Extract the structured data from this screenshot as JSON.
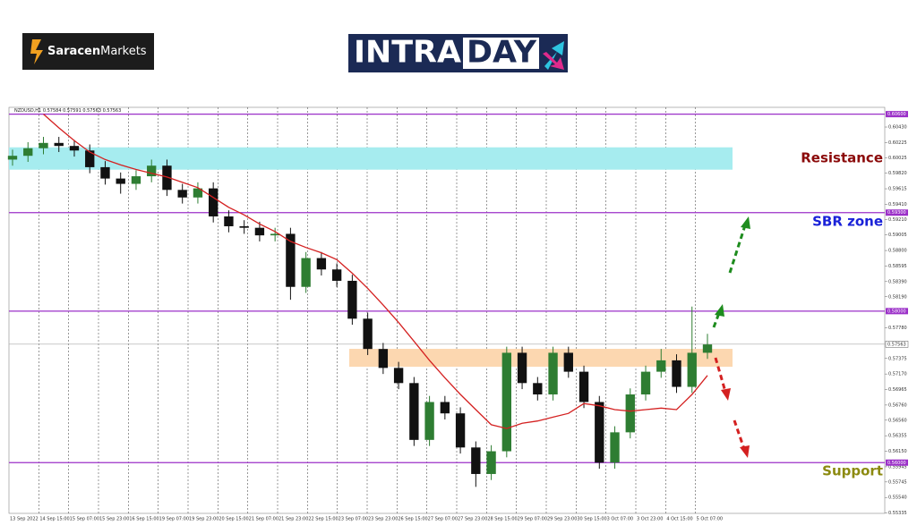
{
  "header": {
    "brand": [
      "Saracen",
      "Markets"
    ],
    "banner": [
      "INTRA",
      "DAY"
    ]
  },
  "chart_data": {
    "type": "candlestick",
    "title": "NZDUSD,H1 0.57584 0.57591 0.57563 0.57563",
    "ylim": [
      0.5533,
      0.6069
    ],
    "yticks": [
      {
        "value": 0.6043,
        "label": "0.60430"
      },
      {
        "value": 0.60225,
        "label": "0.60225"
      },
      {
        "value": 0.60025,
        "label": "0.60025"
      },
      {
        "value": 0.5982,
        "label": "0.59820"
      },
      {
        "value": 0.59615,
        "label": "0.59615"
      },
      {
        "value": 0.5941,
        "label": "0.59410"
      },
      {
        "value": 0.5921,
        "label": "0.59210"
      },
      {
        "value": 0.59005,
        "label": "0.59005"
      },
      {
        "value": 0.588,
        "label": "0.58800"
      },
      {
        "value": 0.58595,
        "label": "0.58595"
      },
      {
        "value": 0.5839,
        "label": "0.58390"
      },
      {
        "value": 0.5819,
        "label": "0.58190"
      },
      {
        "value": 0.5778,
        "label": "0.57780"
      },
      {
        "value": 0.57375,
        "label": "0.57375"
      },
      {
        "value": 0.5717,
        "label": "0.57170"
      },
      {
        "value": 0.56965,
        "label": "0.56965"
      },
      {
        "value": 0.5676,
        "label": "0.56760"
      },
      {
        "value": 0.5656,
        "label": "0.56560"
      },
      {
        "value": 0.56355,
        "label": "0.56355"
      },
      {
        "value": 0.5615,
        "label": "0.56150"
      },
      {
        "value": 0.55945,
        "label": "0.55945"
      },
      {
        "value": 0.55745,
        "label": "0.55745"
      },
      {
        "value": 0.5554,
        "label": "0.55540"
      },
      {
        "value": 0.55335,
        "label": "0.55335"
      }
    ],
    "x_labels": [
      "13 Sep 2022",
      "14 Sep 15:00",
      "15 Sep 07:00",
      "15 Sep 23:00",
      "16 Sep 15:00",
      "19 Sep 07:00",
      "19 Sep 23:00",
      "20 Sep 15:00",
      "21 Sep 07:00",
      "21 Sep 23:00",
      "22 Sep 15:00",
      "23 Sep 07:00",
      "23 Sep 23:00",
      "26 Sep 15:00",
      "27 Sep 07:00",
      "27 Sep 23:00",
      "28 Sep 15:00",
      "29 Sep 07:00",
      "29 Sep 23:00",
      "30 Sep 15:00",
      "3 Oct 07:00",
      "3 Oct 23:00",
      "4 Oct 15:00",
      "5 Oct 07:00"
    ],
    "up_color": "#2e7d32",
    "down_color": "#111111",
    "candles": [
      [
        0.6,
        0.6013,
        0.5992,
        0.6005
      ],
      [
        0.6005,
        0.6023,
        0.5997,
        0.6015
      ],
      [
        0.6015,
        0.603,
        0.6007,
        0.6022
      ],
      [
        0.6022,
        0.603,
        0.601,
        0.6018
      ],
      [
        0.6018,
        0.6026,
        0.6004,
        0.6012
      ],
      [
        0.6012,
        0.602,
        0.5982,
        0.599
      ],
      [
        0.599,
        0.5998,
        0.5967,
        0.5975
      ],
      [
        0.5975,
        0.5983,
        0.5955,
        0.5968
      ],
      [
        0.5968,
        0.5986,
        0.596,
        0.5978
      ],
      [
        0.5978,
        0.6,
        0.597,
        0.5992
      ],
      [
        0.5992,
        0.6,
        0.5952,
        0.596
      ],
      [
        0.596,
        0.5968,
        0.5942,
        0.595
      ],
      [
        0.595,
        0.597,
        0.5942,
        0.5962
      ],
      [
        0.5962,
        0.597,
        0.5917,
        0.5925
      ],
      [
        0.5925,
        0.5933,
        0.5904,
        0.5912
      ],
      [
        0.5912,
        0.592,
        0.5902,
        0.591
      ],
      [
        0.591,
        0.5918,
        0.5892,
        0.59
      ],
      [
        0.59,
        0.591,
        0.5892,
        0.5902
      ],
      [
        0.5902,
        0.591,
        0.5815,
        0.5832
      ],
      [
        0.5832,
        0.5878,
        0.5824,
        0.587
      ],
      [
        0.587,
        0.5878,
        0.5847,
        0.5855
      ],
      [
        0.5855,
        0.5863,
        0.5832,
        0.584
      ],
      [
        0.584,
        0.5848,
        0.5782,
        0.579
      ],
      [
        0.579,
        0.5798,
        0.5742,
        0.575
      ],
      [
        0.575,
        0.5758,
        0.5717,
        0.5725
      ],
      [
        0.5725,
        0.5733,
        0.5697,
        0.5705
      ],
      [
        0.5705,
        0.5713,
        0.5622,
        0.563
      ],
      [
        0.563,
        0.5688,
        0.5622,
        0.568
      ],
      [
        0.568,
        0.5688,
        0.5657,
        0.5665
      ],
      [
        0.5665,
        0.5673,
        0.5612,
        0.562
      ],
      [
        0.562,
        0.5628,
        0.5568,
        0.5585
      ],
      [
        0.5585,
        0.5623,
        0.5577,
        0.5615
      ],
      [
        0.5615,
        0.5753,
        0.5607,
        0.5745
      ],
      [
        0.5745,
        0.5753,
        0.5697,
        0.5705
      ],
      [
        0.5705,
        0.5713,
        0.5682,
        0.569
      ],
      [
        0.569,
        0.5753,
        0.5682,
        0.5745
      ],
      [
        0.5745,
        0.5753,
        0.5712,
        0.572
      ],
      [
        0.572,
        0.5728,
        0.5672,
        0.568
      ],
      [
        0.568,
        0.5688,
        0.5592,
        0.56
      ],
      [
        0.56,
        0.5648,
        0.5592,
        0.564
      ],
      [
        0.564,
        0.5698,
        0.5632,
        0.569
      ],
      [
        0.569,
        0.5728,
        0.5682,
        0.572
      ],
      [
        0.572,
        0.575,
        0.5712,
        0.5735
      ],
      [
        0.5735,
        0.5743,
        0.5692,
        0.57
      ],
      [
        0.57,
        0.5806,
        0.5692,
        0.5745
      ],
      [
        0.5745,
        0.577,
        0.5737,
        0.5756
      ]
    ],
    "ma": {
      "color": "#d42020",
      "values": [
        null,
        null,
        0.606,
        0.6042,
        0.6025,
        0.601,
        0.6,
        0.5993,
        0.5987,
        0.5982,
        0.5977,
        0.597,
        0.5963,
        0.595,
        0.5937,
        0.5927,
        0.5915,
        0.5905,
        0.5892,
        0.5884,
        0.5877,
        0.5868,
        0.585,
        0.583,
        0.5808,
        0.5785,
        0.576,
        0.5735,
        0.5712,
        0.569,
        0.567,
        0.565,
        0.5645,
        0.5652,
        0.5655,
        0.566,
        0.5665,
        0.5678,
        0.5675,
        0.567,
        0.5668,
        0.567,
        0.5672,
        0.567,
        0.569,
        0.5715
      ]
    },
    "zones": [
      {
        "from": 0.59867,
        "to": 0.60162,
        "color": "#a6ecef"
      },
      {
        "from": 0.57265,
        "to": 0.57502,
        "color": "#fcd7b0"
      }
    ],
    "levels": [
      {
        "value": 0.606,
        "label": "0.60600"
      },
      {
        "value": 0.593,
        "label": "0.59300"
      },
      {
        "value": 0.58,
        "label": "0.58000"
      },
      {
        "value": 0.56,
        "label": "0.56000"
      }
    ],
    "level_color": "#9b30c8",
    "current_price": {
      "value": 0.57563,
      "label": "0.57563"
    },
    "annotations": [
      {
        "text": "Resistance",
        "color": "#8b0a0a"
      },
      {
        "text": "SBR zone",
        "color": "#1a22d8"
      },
      {
        "text": "Support",
        "color": "#8c8a10"
      }
    ]
  }
}
